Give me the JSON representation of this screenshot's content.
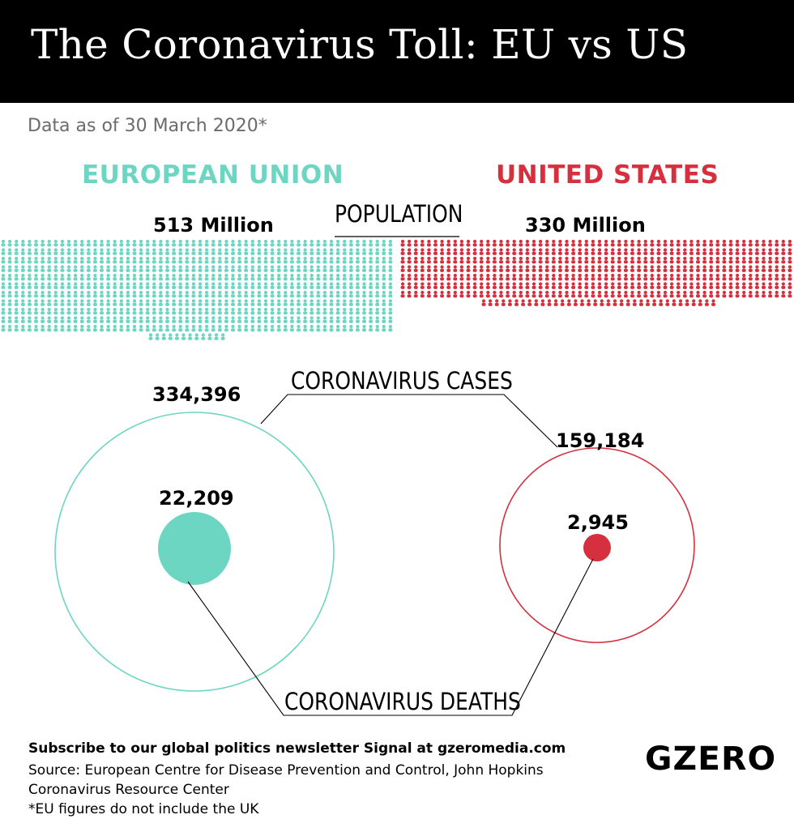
{
  "title": "The Coronavirus Toll: EU vs US",
  "subtitle": "Data as of 30 March 2020*",
  "colors": {
    "eu": "#6dd6c2",
    "us": "#d6303f",
    "header_bg": "#000000"
  },
  "eu": {
    "name": "EUROPEAN UNION",
    "population": "513 Million",
    "population_millions": 513,
    "cases": "334,396",
    "cases_value": 334396,
    "deaths": "22,209",
    "deaths_value": 22209
  },
  "us": {
    "name": "UNITED STATES",
    "population": "330 Million",
    "population_millions": 330,
    "cases": "159,184",
    "cases_value": 159184,
    "deaths": "2,945",
    "deaths_value": 2945
  },
  "labels": {
    "population": "POPULATION",
    "cases": "CORONAVIRUS CASES",
    "deaths": "CORONAVIRUS DEATHS"
  },
  "footer": {
    "subscribe": "Subscribe to our global politics newsletter Signal at gzeromedia.com",
    "source_line1": "Source: European Centre for Disease Prevention and Control, John Hopkins",
    "source_line2": "Coronavirus Resource Center",
    "note": "*EU figures do not include the UK"
  },
  "logo": "GZERO"
}
